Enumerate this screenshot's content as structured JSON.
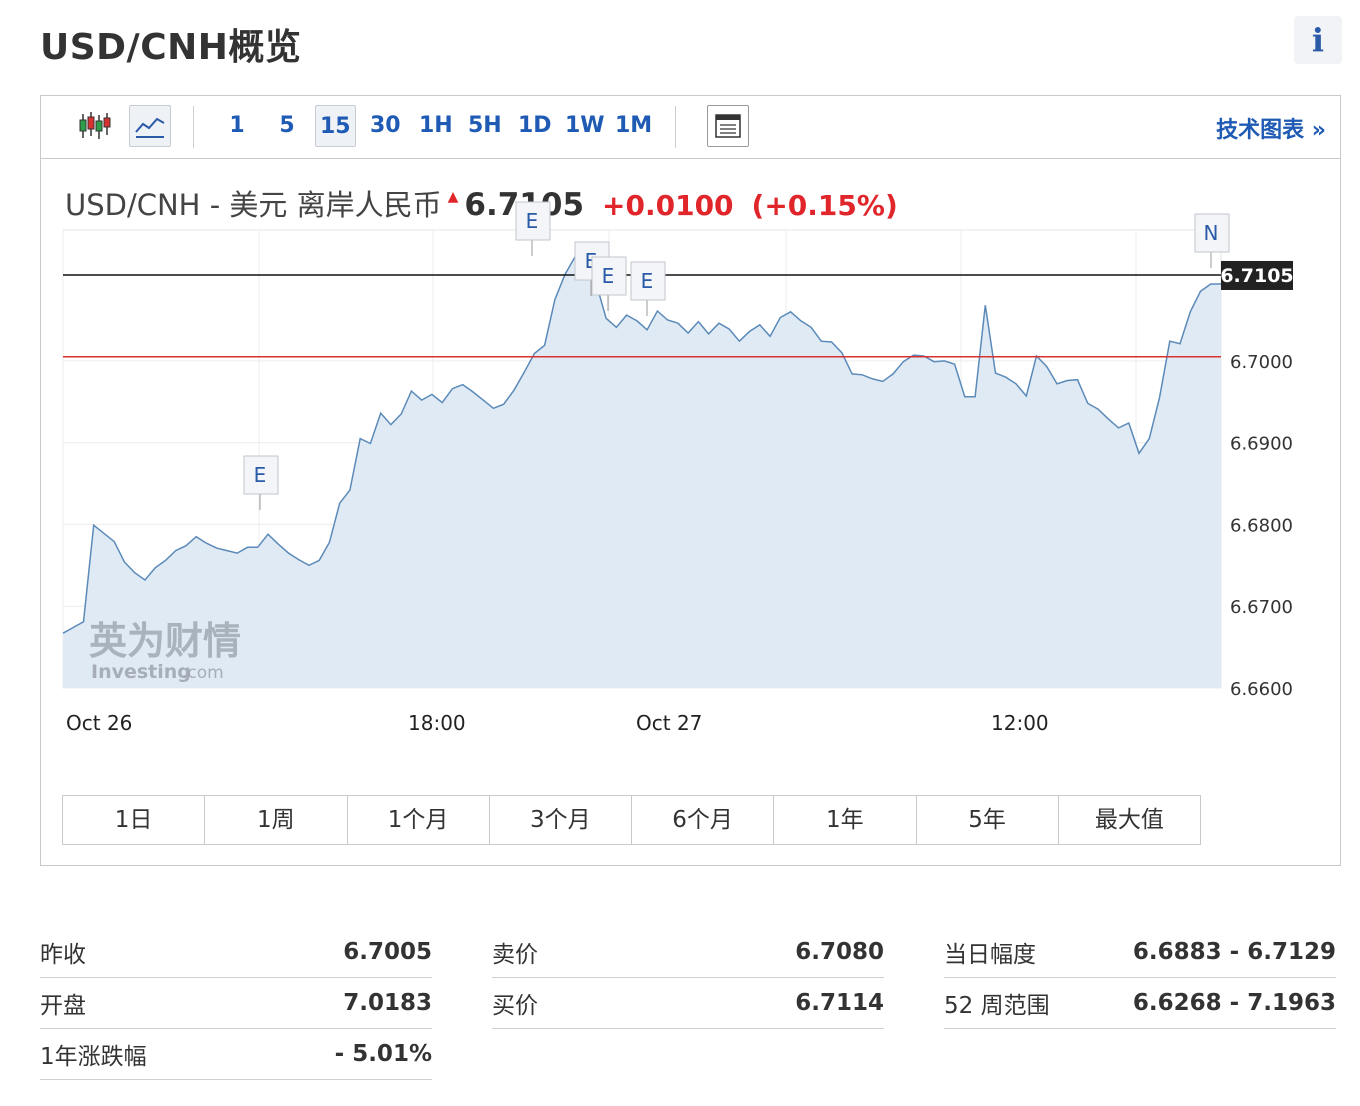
{
  "page": {
    "title": "USD/CNH概览",
    "info_icon": "i"
  },
  "toolbar": {
    "icons": [
      "candlestick-icon",
      "area-chart-icon",
      "calendar-icon"
    ],
    "timeframes": [
      "1",
      "5",
      "15",
      "30",
      "1H",
      "5H",
      "1D",
      "1W",
      "1M"
    ],
    "selected_timeframe": "15",
    "technical_link": "技术图表 »"
  },
  "chart_heading": {
    "name": "USD/CNH - 美元 离岸人民币",
    "direction_icon": "up-arrow-icon",
    "price": "6.7105",
    "change": "+0.0100",
    "change_pct": "(+0.15%)"
  },
  "chart_data": {
    "type": "area",
    "ylim": [
      6.66,
      6.716
    ],
    "yticks": [
      "6.6600",
      "6.6700",
      "6.6800",
      "6.6900",
      "6.7000"
    ],
    "current_price_label": "6.7105",
    "current_price": 6.7105,
    "previous_close": 6.7005,
    "x_labels": [
      "Oct 26",
      "18:00",
      "Oct 27",
      "12:00"
    ],
    "colors": {
      "line": "#5b8ab8",
      "fill": "#dfeaf5",
      "prev_close_line": "#d93030",
      "current_line": "#111111"
    },
    "event_markers": [
      "E",
      "E",
      "E",
      "E",
      "E",
      "N"
    ],
    "values": [
      6.6667,
      6.6674,
      6.6681,
      6.6799,
      6.6789,
      6.6779,
      6.6754,
      6.6741,
      6.6732,
      6.6747,
      6.6756,
      6.6768,
      6.6774,
      6.6785,
      6.6777,
      6.6771,
      6.6768,
      6.6765,
      6.6772,
      6.6772,
      6.6788,
      6.6776,
      6.6765,
      6.6757,
      6.675,
      6.6756,
      6.6778,
      6.6826,
      6.6842,
      6.6905,
      6.6899,
      6.6936,
      6.6922,
      6.6935,
      6.6963,
      6.6952,
      6.6959,
      6.6949,
      6.6966,
      6.6971,
      6.6962,
      6.6952,
      6.6942,
      6.6947,
      6.6964,
      6.6986,
      6.7009,
      6.7019,
      6.7075,
      6.7106,
      6.7128,
      6.7107,
      6.7096,
      6.7052,
      6.7041,
      6.7056,
      6.7049,
      6.7038,
      6.7061,
      6.705,
      6.7046,
      6.7034,
      6.7048,
      6.7033,
      6.7046,
      6.7039,
      6.7024,
      6.7036,
      6.7044,
      6.703,
      6.7053,
      6.706,
      6.7049,
      6.7041,
      6.7024,
      6.7023,
      6.701,
      6.6984,
      6.6983,
      6.6978,
      6.6975,
      6.6984,
      6.6999,
      6.7007,
      6.7006,
      6.6999,
      6.7,
      6.6996,
      6.6956,
      6.6956,
      6.7068,
      6.6985,
      6.698,
      6.6972,
      6.6957,
      6.7006,
      6.6993,
      6.6972,
      6.6976,
      6.6977,
      6.6948,
      6.6941,
      6.6929,
      6.6918,
      6.6924,
      6.6887,
      6.6905,
      6.6955,
      6.7024,
      6.7021,
      6.706,
      6.7085,
      6.7094,
      6.7094
    ]
  },
  "period_tabs": [
    "1日",
    "1周",
    "1个月",
    "3个月",
    "6个月",
    "1年",
    "5年",
    "最大值"
  ],
  "watermark": {
    "brand_cn": "英为财情",
    "brand_en": "Investing",
    "suffix": ".com"
  },
  "stats": {
    "col1": [
      {
        "label": "昨收",
        "value": "6.7005"
      },
      {
        "label": "开盘",
        "value": "7.0183"
      },
      {
        "label": "1年涨跌幅",
        "value": "- 5.01%"
      }
    ],
    "col2": [
      {
        "label": "卖价",
        "value": "6.7080"
      },
      {
        "label": "买价",
        "value": "6.7114"
      }
    ],
    "col3": [
      {
        "label": "当日幅度",
        "value": "6.6883 - 6.7129"
      },
      {
        "label": "52 周范围",
        "value": "6.6268 - 7.1963"
      }
    ]
  }
}
